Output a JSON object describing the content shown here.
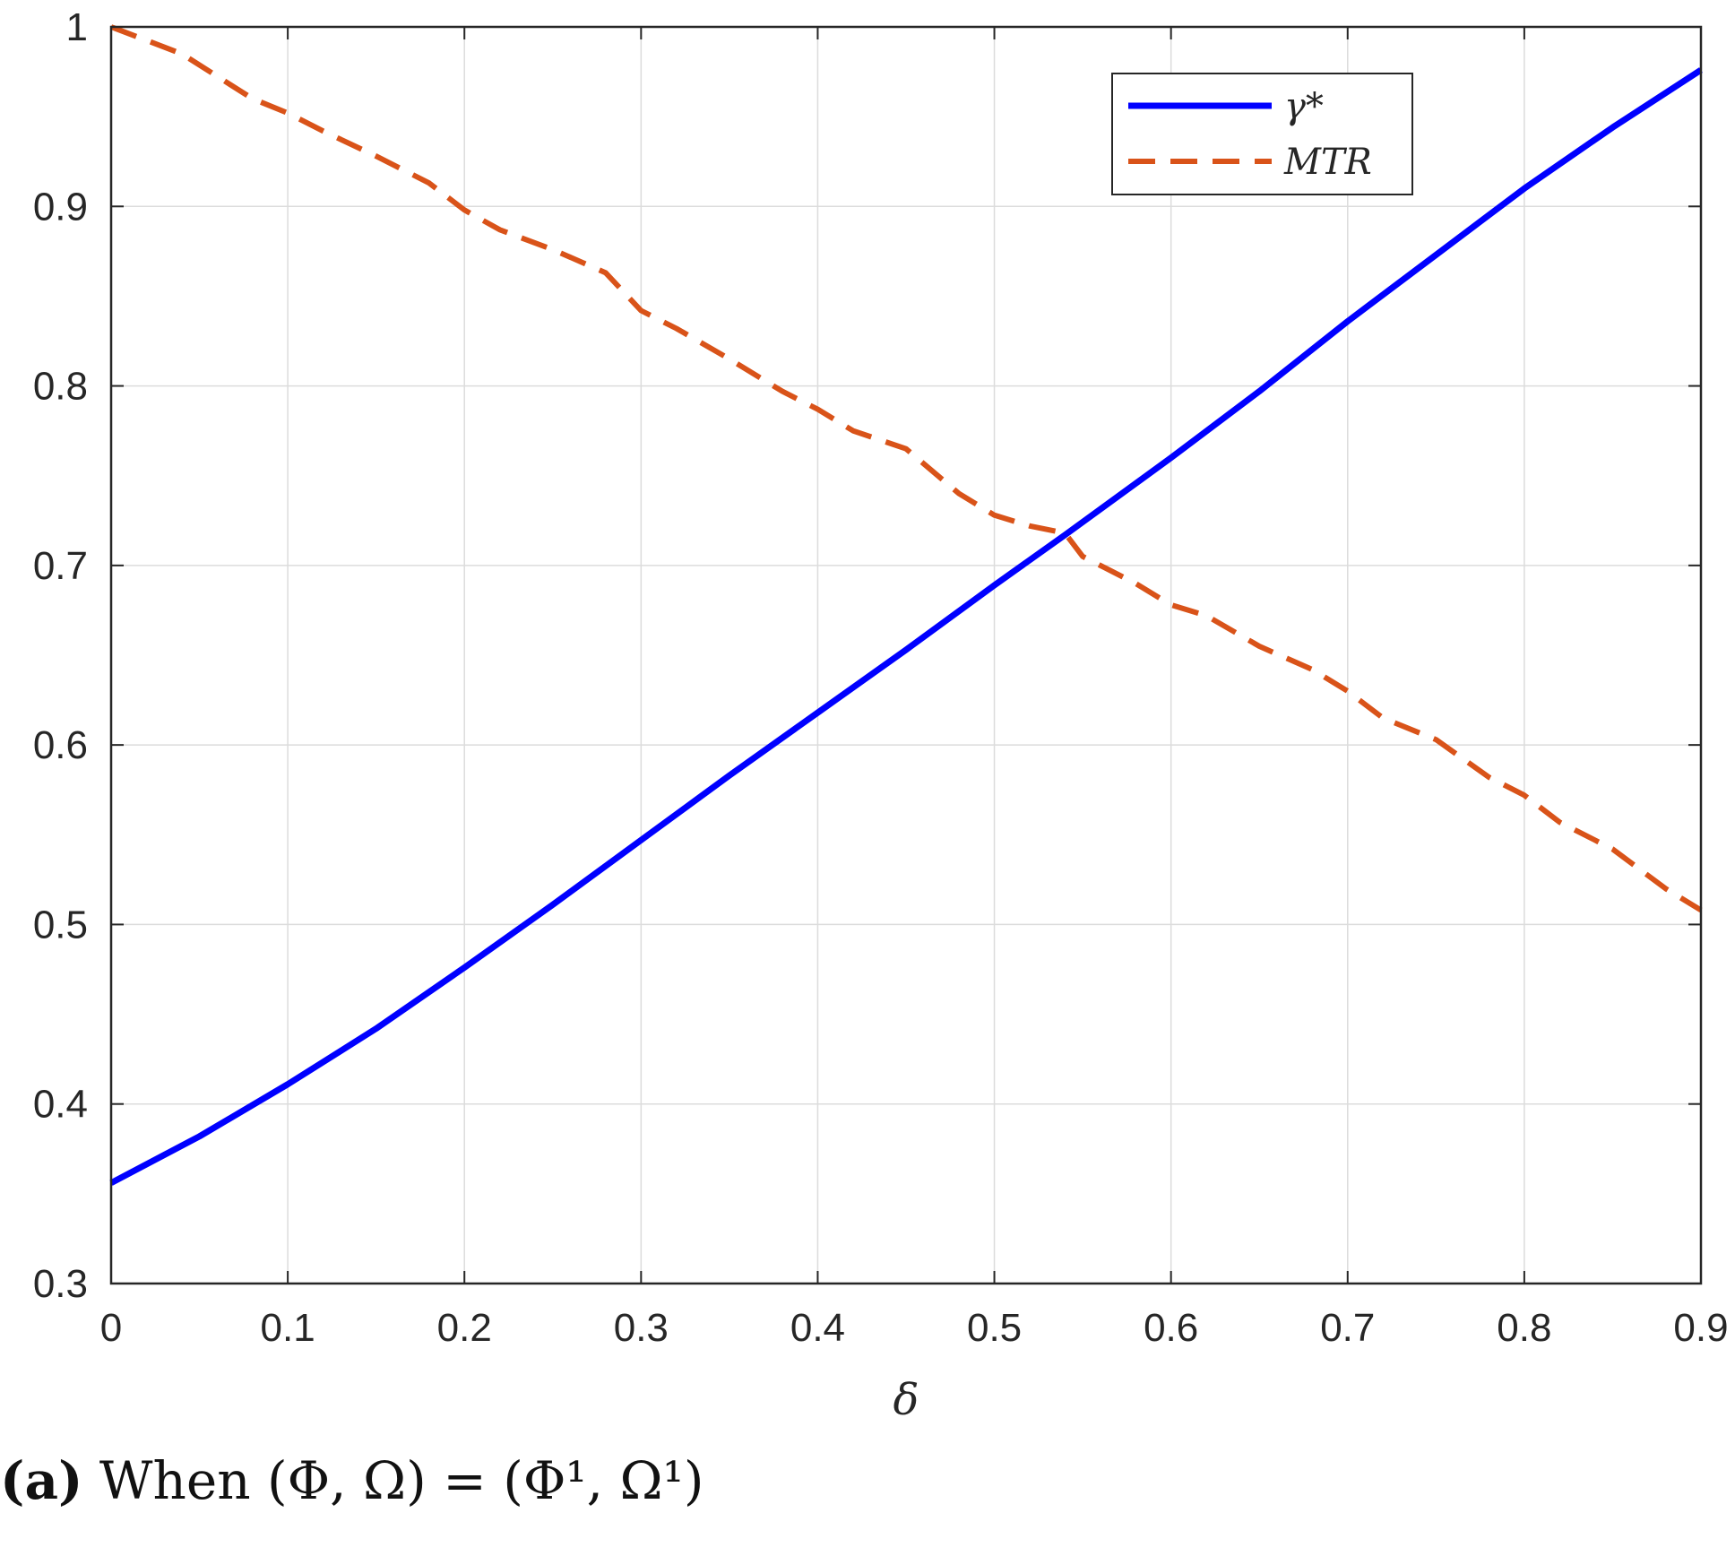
{
  "chart_data": {
    "type": "line",
    "xlabel": "δ",
    "ylabel": "",
    "xlim": [
      0,
      0.9
    ],
    "ylim": [
      0.3,
      1
    ],
    "xticks": [
      "0",
      "0.1",
      "0.2",
      "0.3",
      "0.4",
      "0.5",
      "0.6",
      "0.7",
      "0.8",
      "0.9"
    ],
    "yticks": [
      "0.3",
      "0.4",
      "0.5",
      "0.6",
      "0.7",
      "0.8",
      "0.9",
      "1"
    ],
    "grid": true,
    "legend_position": "top-right",
    "series": [
      {
        "name": "γ*",
        "color": "#0000ff",
        "style": "solid",
        "x": [
          0,
          0.05,
          0.1,
          0.15,
          0.2,
          0.25,
          0.3,
          0.35,
          0.4,
          0.45,
          0.5,
          0.54,
          0.6,
          0.65,
          0.7,
          0.75,
          0.8,
          0.85,
          0.9
        ],
        "y": [
          0.356,
          0.382,
          0.411,
          0.442,
          0.476,
          0.511,
          0.547,
          0.583,
          0.618,
          0.653,
          0.689,
          0.717,
          0.76,
          0.797,
          0.836,
          0.873,
          0.91,
          0.944,
          0.976
        ]
      },
      {
        "name": "MTR",
        "color": "#d95319",
        "style": "dashed",
        "x": [
          0,
          0.04,
          0.08,
          0.1,
          0.12,
          0.15,
          0.18,
          0.2,
          0.22,
          0.25,
          0.28,
          0.3,
          0.32,
          0.35,
          0.38,
          0.4,
          0.42,
          0.45,
          0.48,
          0.5,
          0.52,
          0.54,
          0.55,
          0.58,
          0.6,
          0.62,
          0.65,
          0.68,
          0.7,
          0.72,
          0.75,
          0.78,
          0.8,
          0.82,
          0.85,
          0.88,
          0.9
        ],
        "y": [
          1.0,
          0.985,
          0.96,
          0.952,
          0.942,
          0.928,
          0.913,
          0.898,
          0.887,
          0.876,
          0.863,
          0.842,
          0.832,
          0.815,
          0.797,
          0.787,
          0.775,
          0.765,
          0.74,
          0.728,
          0.722,
          0.718,
          0.705,
          0.69,
          0.678,
          0.672,
          0.655,
          0.642,
          0.63,
          0.615,
          0.603,
          0.582,
          0.572,
          0.557,
          0.542,
          0.52,
          0.508
        ]
      }
    ]
  },
  "caption": {
    "tag": "(a)",
    "text": " When (Φ, Ω) = (Φ¹, Ω¹)"
  }
}
